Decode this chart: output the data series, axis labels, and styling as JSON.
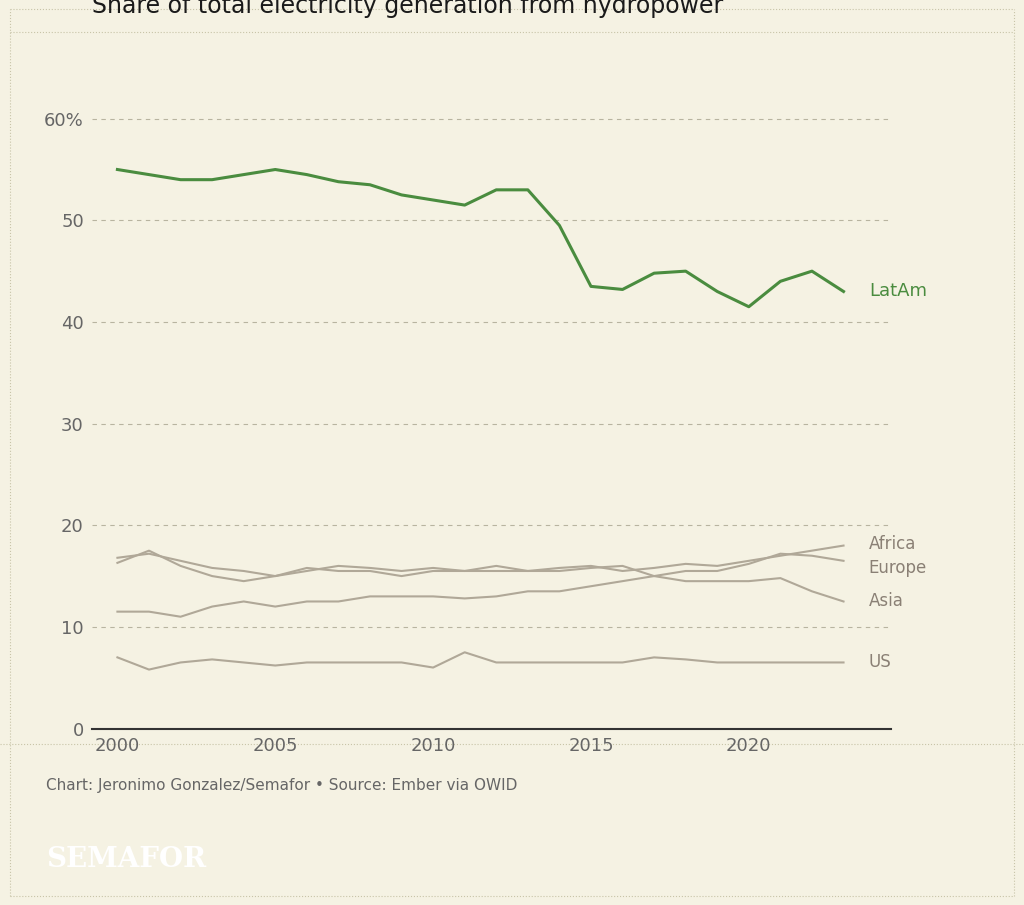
{
  "title": "Share of total electricity generation from hydropower",
  "background_color": "#f5f2e3",
  "footer_text": "Chart: Jeronimo Gonzalez/Semafor • Source: Ember via OWID",
  "semafor_label": "SEMAFOR",
  "ylim": [
    0,
    65
  ],
  "yticks": [
    0,
    10,
    20,
    30,
    40,
    50,
    60
  ],
  "ytick_labels": [
    "0",
    "10",
    "20",
    "30",
    "40",
    "50",
    "60%"
  ],
  "xticks": [
    2000,
    2005,
    2010,
    2015,
    2020
  ],
  "xlim": [
    1999.2,
    2024.5
  ],
  "series": {
    "LatAm": {
      "color": "#4a8c3f",
      "lw": 2.2,
      "years": [
        2000,
        2001,
        2002,
        2003,
        2004,
        2005,
        2006,
        2007,
        2008,
        2009,
        2010,
        2011,
        2012,
        2013,
        2014,
        2015,
        2016,
        2017,
        2018,
        2019,
        2020,
        2021,
        2022,
        2023
      ],
      "values": [
        55.0,
        54.5,
        54.0,
        54.0,
        54.5,
        55.0,
        54.5,
        53.8,
        53.5,
        52.5,
        52.0,
        51.5,
        53.0,
        53.0,
        49.5,
        43.5,
        43.2,
        44.8,
        45.0,
        43.0,
        41.5,
        44.0,
        45.0,
        43.0
      ]
    },
    "Africa": {
      "color": "#b0a898",
      "lw": 1.5,
      "years": [
        2000,
        2001,
        2002,
        2003,
        2004,
        2005,
        2006,
        2007,
        2008,
        2009,
        2010,
        2011,
        2012,
        2013,
        2014,
        2015,
        2016,
        2017,
        2018,
        2019,
        2020,
        2021,
        2022,
        2023
      ],
      "values": [
        16.8,
        17.2,
        16.5,
        15.8,
        15.5,
        15.0,
        15.5,
        16.0,
        15.8,
        15.5,
        15.8,
        15.5,
        15.5,
        15.5,
        15.8,
        16.0,
        15.5,
        15.8,
        16.2,
        16.0,
        16.5,
        17.0,
        17.5,
        18.0
      ]
    },
    "Europe": {
      "color": "#b0a898",
      "lw": 1.5,
      "years": [
        2000,
        2001,
        2002,
        2003,
        2004,
        2005,
        2006,
        2007,
        2008,
        2009,
        2010,
        2011,
        2012,
        2013,
        2014,
        2015,
        2016,
        2017,
        2018,
        2019,
        2020,
        2021,
        2022,
        2023
      ],
      "values": [
        16.3,
        17.5,
        16.0,
        15.0,
        14.5,
        15.0,
        15.8,
        15.5,
        15.5,
        15.0,
        15.5,
        15.5,
        16.0,
        15.5,
        15.5,
        15.8,
        16.0,
        15.0,
        15.5,
        15.5,
        16.2,
        17.2,
        17.0,
        16.5
      ]
    },
    "Asia": {
      "color": "#b0a898",
      "lw": 1.5,
      "years": [
        2000,
        2001,
        2002,
        2003,
        2004,
        2005,
        2006,
        2007,
        2008,
        2009,
        2010,
        2011,
        2012,
        2013,
        2014,
        2015,
        2016,
        2017,
        2018,
        2019,
        2020,
        2021,
        2022,
        2023
      ],
      "values": [
        11.5,
        11.5,
        11.0,
        12.0,
        12.5,
        12.0,
        12.5,
        12.5,
        13.0,
        13.0,
        13.0,
        12.8,
        13.0,
        13.5,
        13.5,
        14.0,
        14.5,
        15.0,
        14.5,
        14.5,
        14.5,
        14.8,
        13.5,
        12.5
      ]
    },
    "US": {
      "color": "#b0a898",
      "lw": 1.5,
      "years": [
        2000,
        2001,
        2002,
        2003,
        2004,
        2005,
        2006,
        2007,
        2008,
        2009,
        2010,
        2011,
        2012,
        2013,
        2014,
        2015,
        2016,
        2017,
        2018,
        2019,
        2020,
        2021,
        2022,
        2023
      ],
      "values": [
        7.0,
        5.8,
        6.5,
        6.8,
        6.5,
        6.2,
        6.5,
        6.5,
        6.5,
        6.5,
        6.0,
        7.5,
        6.5,
        6.5,
        6.5,
        6.5,
        6.5,
        7.0,
        6.8,
        6.5,
        6.5,
        6.5,
        6.5,
        6.5
      ]
    }
  },
  "labels": {
    "LatAm": {
      "y": 43.0,
      "color": "#4a8c3f",
      "fontsize": 13
    },
    "Africa": {
      "y": 18.2,
      "color": "#8a8075",
      "fontsize": 12
    },
    "Europe": {
      "y": 15.8,
      "color": "#8a8075",
      "fontsize": 12
    },
    "Asia": {
      "y": 12.5,
      "color": "#8a8075",
      "fontsize": 12
    },
    "US": {
      "y": 6.5,
      "color": "#8a8075",
      "fontsize": 12
    }
  },
  "outer_border_color": "#c8c4a8",
  "grid_color": "#b8b4a0",
  "spine_bottom_color": "#333333",
  "tick_color": "#666666",
  "title_fontsize": 17,
  "tick_fontsize": 13,
  "footer_fontsize": 11,
  "semafor_fontsize": 20
}
